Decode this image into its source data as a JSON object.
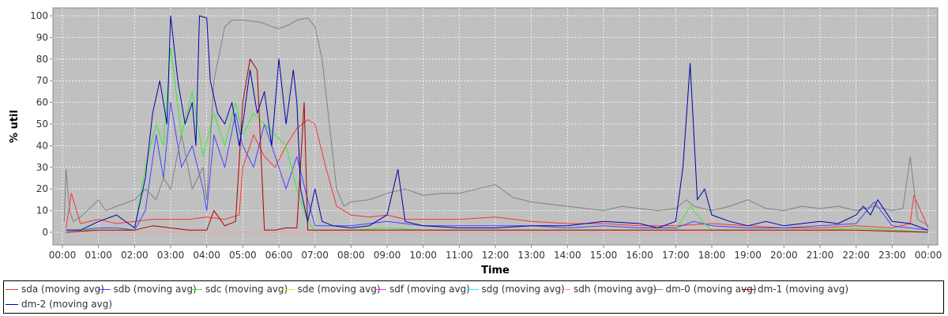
{
  "chart_data": {
    "type": "line",
    "title": "",
    "xlabel": "Time",
    "ylabel": "% util",
    "ylim": [
      0,
      100
    ],
    "yticks": [
      0,
      10,
      20,
      30,
      40,
      50,
      60,
      70,
      80,
      90,
      100
    ],
    "x_tick_labels": [
      "00:00",
      "01:00",
      "02:00",
      "03:00",
      "04:00",
      "05:00",
      "06:00",
      "07:00",
      "08:00",
      "09:00",
      "10:00",
      "11:00",
      "12:00",
      "13:00",
      "14:00",
      "15:00",
      "16:00",
      "17:00",
      "18:00",
      "19:00",
      "20:00",
      "21:00",
      "22:00",
      "23:00",
      "00:00"
    ],
    "x_range_hours": [
      0,
      24
    ],
    "background_color": "#c0c0c0",
    "grid": true,
    "legend_position": "bottom",
    "series": [
      {
        "name": "sda (moving avg)",
        "color": "#ff3333",
        "x": [
          0.1,
          0.25,
          0.5,
          1.0,
          1.5,
          2.0,
          2.5,
          3.0,
          3.5,
          4.0,
          4.5,
          4.9,
          5.0,
          5.3,
          5.6,
          5.9,
          6.2,
          6.5,
          6.8,
          7.0,
          7.3,
          7.6,
          8.0,
          8.5,
          9.0,
          9.5,
          10.0,
          11.0,
          12.0,
          13.0,
          14.0,
          15.0,
          16.0,
          17.0,
          18.0,
          19.0,
          20.0,
          21.0,
          22.0,
          23.0,
          23.5,
          23.6,
          24.0
        ],
        "y": [
          2,
          18,
          4,
          6,
          4,
          5,
          6,
          6,
          6,
          7,
          6,
          8,
          30,
          45,
          35,
          30,
          40,
          48,
          52,
          50,
          30,
          12,
          8,
          7,
          8,
          6,
          6,
          6,
          7,
          5,
          4,
          4,
          3,
          3,
          4,
          3,
          2,
          2,
          3,
          2,
          4,
          17,
          2
        ]
      },
      {
        "name": "sdb (moving avg)",
        "color": "#4444ff",
        "x": [
          0.1,
          0.5,
          1.0,
          1.5,
          2.0,
          2.3,
          2.6,
          2.8,
          3.0,
          3.3,
          3.6,
          3.9,
          4.0,
          4.2,
          4.5,
          4.8,
          5.0,
          5.3,
          5.6,
          5.9,
          6.2,
          6.5,
          6.8,
          7.0,
          7.5,
          8.0,
          9.0,
          10.0,
          11.0,
          12.0,
          13.0,
          14.0,
          15.0,
          16.0,
          17.0,
          17.5,
          18.0,
          19.0,
          20.0,
          21.0,
          22.0,
          22.5,
          23.0,
          24.0
        ],
        "y": [
          1,
          1,
          2,
          2,
          1,
          10,
          45,
          25,
          60,
          30,
          40,
          20,
          10,
          45,
          30,
          55,
          40,
          30,
          50,
          35,
          20,
          35,
          15,
          3,
          3,
          3,
          5,
          3,
          3,
          3,
          3,
          2,
          3,
          2,
          2,
          5,
          3,
          2,
          2,
          3,
          4,
          14,
          3,
          1
        ]
      },
      {
        "name": "sdc (moving avg)",
        "color": "#33ee33",
        "x": [
          0.1,
          0.5,
          1.0,
          1.5,
          2.0,
          2.3,
          2.6,
          2.8,
          3.0,
          3.3,
          3.6,
          3.9,
          4.2,
          4.5,
          4.8,
          5.0,
          5.3,
          5.6,
          5.9,
          6.2,
          6.5,
          6.8,
          7.0,
          7.5,
          8.0,
          9.0,
          10.0,
          11.0,
          12.0,
          13.0,
          14.0,
          15.0,
          16.0,
          17.0,
          17.4,
          17.8,
          18.0,
          19.0,
          20.0,
          21.0,
          22.0,
          23.0,
          24.0
        ],
        "y": [
          1,
          1,
          1,
          1,
          1,
          30,
          50,
          40,
          85,
          45,
          65,
          35,
          55,
          40,
          60,
          45,
          55,
          50,
          45,
          40,
          20,
          5,
          1,
          1,
          1,
          2,
          1,
          1,
          1,
          1,
          1,
          1,
          1,
          1,
          12,
          4,
          1,
          1,
          1,
          1,
          2,
          1,
          0
        ]
      },
      {
        "name": "sde (moving avg)",
        "color": "#eeee00",
        "x": [
          0,
          6,
          12,
          18,
          24
        ],
        "y": [
          0,
          0,
          0,
          0,
          0
        ]
      },
      {
        "name": "sdf (moving avg)",
        "color": "#ff33ff",
        "x": [
          0,
          6,
          12,
          18,
          24
        ],
        "y": [
          0,
          0,
          0,
          0,
          0
        ]
      },
      {
        "name": "sdg (moving avg)",
        "color": "#33eeee",
        "x": [
          0,
          6,
          12,
          18,
          24
        ],
        "y": [
          0,
          0,
          0,
          0,
          0
        ]
      },
      {
        "name": "sdh (moving avg)",
        "color": "#ff9999",
        "x": [
          0,
          6,
          12,
          18,
          24
        ],
        "y": [
          0,
          0,
          0,
          0,
          0
        ]
      },
      {
        "name": "dm-0 (moving avg)",
        "color": "#808080",
        "x": [
          0.05,
          0.1,
          0.2,
          0.3,
          0.5,
          1.0,
          1.2,
          1.5,
          2.0,
          2.3,
          2.6,
          2.8,
          3.0,
          3.3,
          3.6,
          3.9,
          4.0,
          4.2,
          4.5,
          4.7,
          5.0,
          5.5,
          5.8,
          6.0,
          6.3,
          6.5,
          6.8,
          7.0,
          7.2,
          7.4,
          7.6,
          7.8,
          8.0,
          8.5,
          9.0,
          9.5,
          10.0,
          10.5,
          11.0,
          11.5,
          12.0,
          12.5,
          13.0,
          13.5,
          14.0,
          14.5,
          15.0,
          15.5,
          16.0,
          16.5,
          17.0,
          17.3,
          17.5,
          18.0,
          18.5,
          19.0,
          19.5,
          20.0,
          20.5,
          21.0,
          21.5,
          22.0,
          22.5,
          23.0,
          23.3,
          23.5,
          23.7,
          24.0
        ],
        "y": [
          5,
          29,
          10,
          5,
          7,
          15,
          10,
          12,
          15,
          20,
          15,
          25,
          20,
          45,
          20,
          30,
          15,
          70,
          95,
          98,
          98,
          97,
          95,
          94,
          96,
          98,
          99,
          95,
          80,
          50,
          20,
          12,
          14,
          15,
          18,
          20,
          17,
          18,
          18,
          20,
          22,
          16,
          14,
          13,
          12,
          11,
          10,
          12,
          11,
          10,
          11,
          15,
          12,
          10,
          12,
          15,
          11,
          10,
          12,
          11,
          12,
          10,
          12,
          10,
          11,
          35,
          6,
          3
        ]
      },
      {
        "name": "dm-1 (moving avg)",
        "color": "#aa0000",
        "x": [
          0.1,
          1.0,
          1.5,
          2.0,
          2.5,
          3.0,
          3.5,
          4.0,
          4.2,
          4.5,
          4.8,
          5.0,
          5.2,
          5.4,
          5.6,
          5.9,
          6.2,
          6.5,
          6.7,
          6.8,
          7.0,
          7.5,
          8.0,
          9.0,
          10.0,
          12.0,
          14.0,
          16.0,
          18.0,
          20.0,
          22.0,
          24.0
        ],
        "y": [
          0,
          1,
          1,
          1,
          3,
          2,
          1,
          1,
          10,
          3,
          5,
          60,
          80,
          75,
          1,
          1,
          2,
          2,
          60,
          1,
          1,
          1,
          1,
          1,
          1,
          1,
          1,
          1,
          1,
          1,
          1,
          0
        ]
      },
      {
        "name": "dm-2 (moving avg)",
        "color": "#0000aa",
        "x": [
          0.1,
          0.5,
          1.0,
          1.5,
          2.0,
          2.3,
          2.5,
          2.7,
          2.9,
          3.0,
          3.2,
          3.4,
          3.6,
          3.7,
          3.8,
          4.0,
          4.1,
          4.3,
          4.5,
          4.7,
          4.9,
          5.0,
          5.2,
          5.4,
          5.6,
          5.8,
          6.0,
          6.2,
          6.4,
          6.5,
          6.6,
          6.8,
          7.0,
          7.2,
          7.5,
          8.0,
          8.5,
          9.0,
          9.3,
          9.5,
          10.0,
          11.0,
          12.0,
          13.0,
          14.0,
          15.0,
          16.0,
          16.5,
          17.0,
          17.2,
          17.4,
          17.6,
          17.8,
          18.0,
          18.5,
          19.0,
          19.5,
          20.0,
          20.5,
          21.0,
          21.5,
          22.0,
          22.2,
          22.4,
          22.6,
          23.0,
          23.5,
          24.0
        ],
        "y": [
          1,
          1,
          5,
          8,
          2,
          25,
          55,
          70,
          50,
          100,
          70,
          50,
          60,
          40,
          100,
          99,
          70,
          55,
          50,
          60,
          40,
          50,
          75,
          55,
          65,
          40,
          80,
          50,
          75,
          60,
          20,
          5,
          20,
          5,
          3,
          2,
          3,
          8,
          29,
          5,
          3,
          2,
          2,
          3,
          3,
          5,
          4,
          2,
          5,
          30,
          78,
          15,
          20,
          8,
          5,
          3,
          5,
          3,
          4,
          5,
          4,
          8,
          12,
          8,
          15,
          5,
          4,
          1
        ]
      }
    ]
  }
}
